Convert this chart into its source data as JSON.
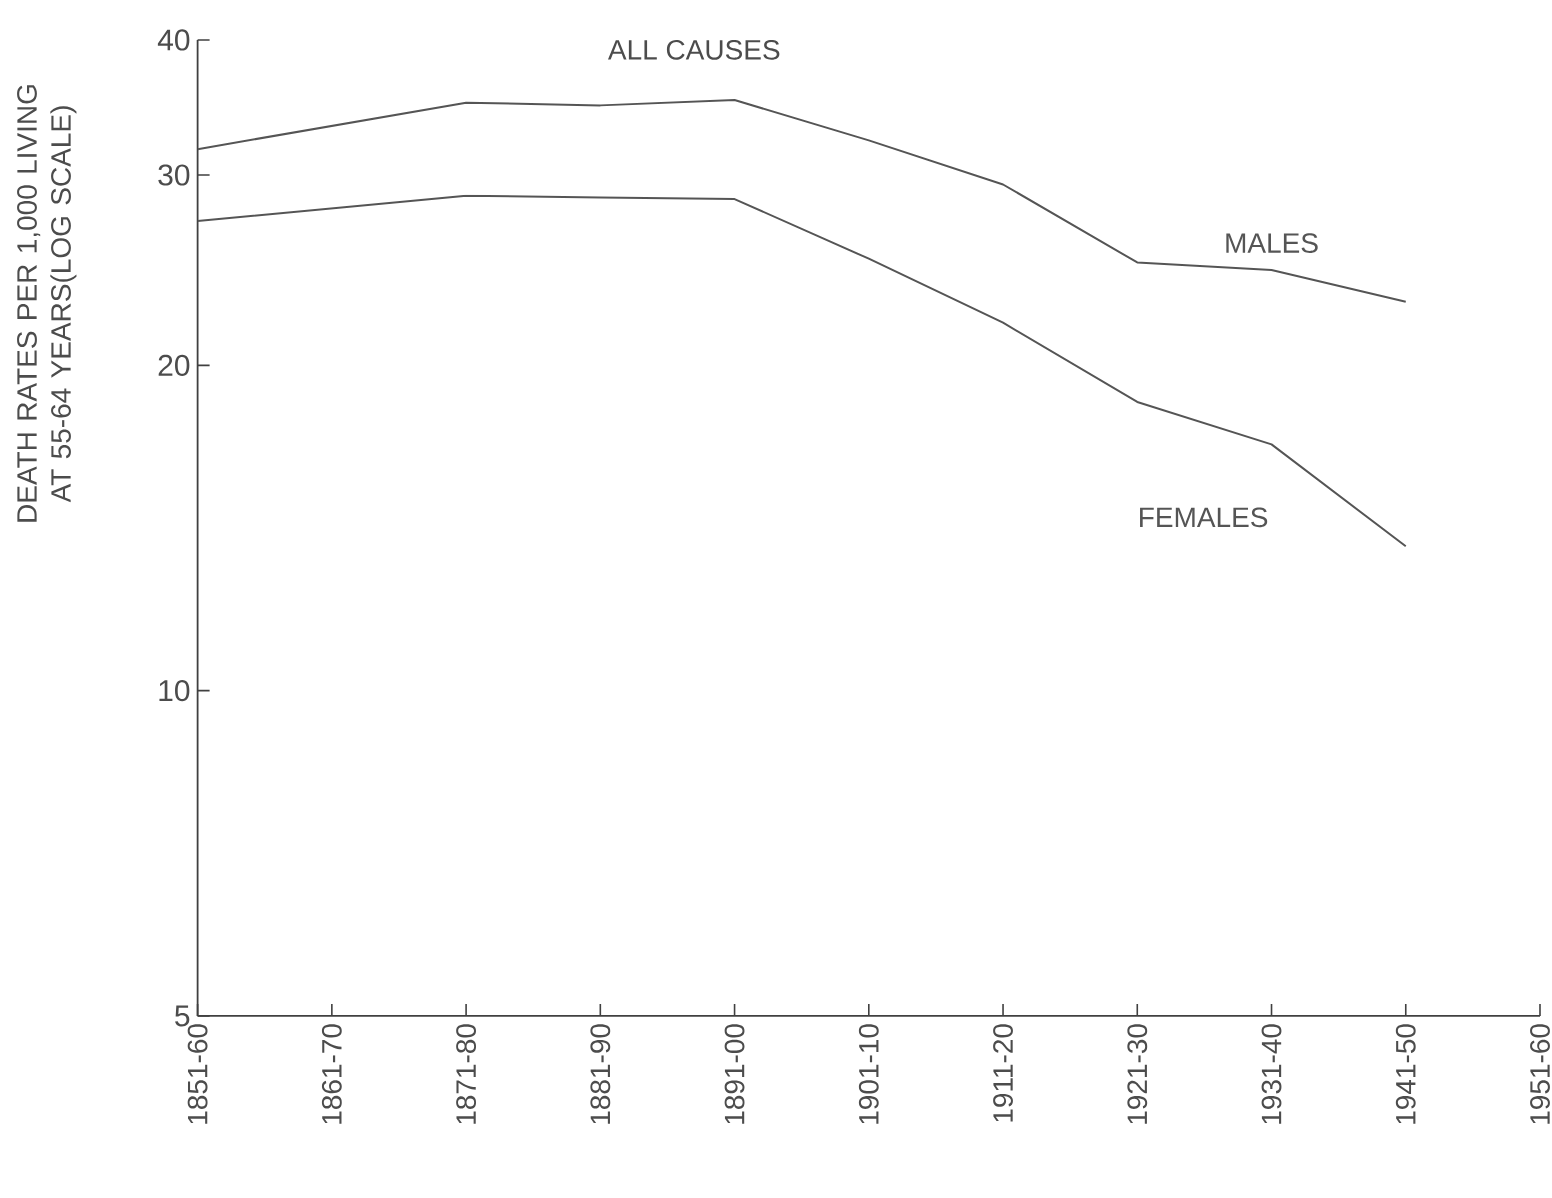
{
  "chart_data": {
    "type": "line",
    "title": "ALL CAUSES",
    "ylabel": "DEATH RATES PER 1,000 LIVING AT 55-64 YEARS(LOG SCALE)",
    "log": "y",
    "categories": [
      "1851-60",
      "1861-70",
      "1871-80",
      "1881-90",
      "1891-00",
      "1901-10",
      "1911-20",
      "1921-30",
      "1931-40",
      "1941-50",
      "1951-60"
    ],
    "ylim": [
      5,
      40
    ],
    "yticks": [
      5,
      10,
      20,
      30,
      40
    ],
    "series": [
      {
        "name": "MALES",
        "color": "#555555",
        "values": [
          31.7,
          null,
          35.0,
          34.8,
          35.2,
          32.3,
          29.4,
          24.9,
          24.5,
          22.9,
          null
        ]
      },
      {
        "name": "FEMALES",
        "color": "#555555",
        "values": [
          27.2,
          null,
          28.7,
          28.6,
          28.5,
          25.1,
          21.9,
          18.5,
          16.9,
          13.6,
          null
        ]
      }
    ]
  }
}
